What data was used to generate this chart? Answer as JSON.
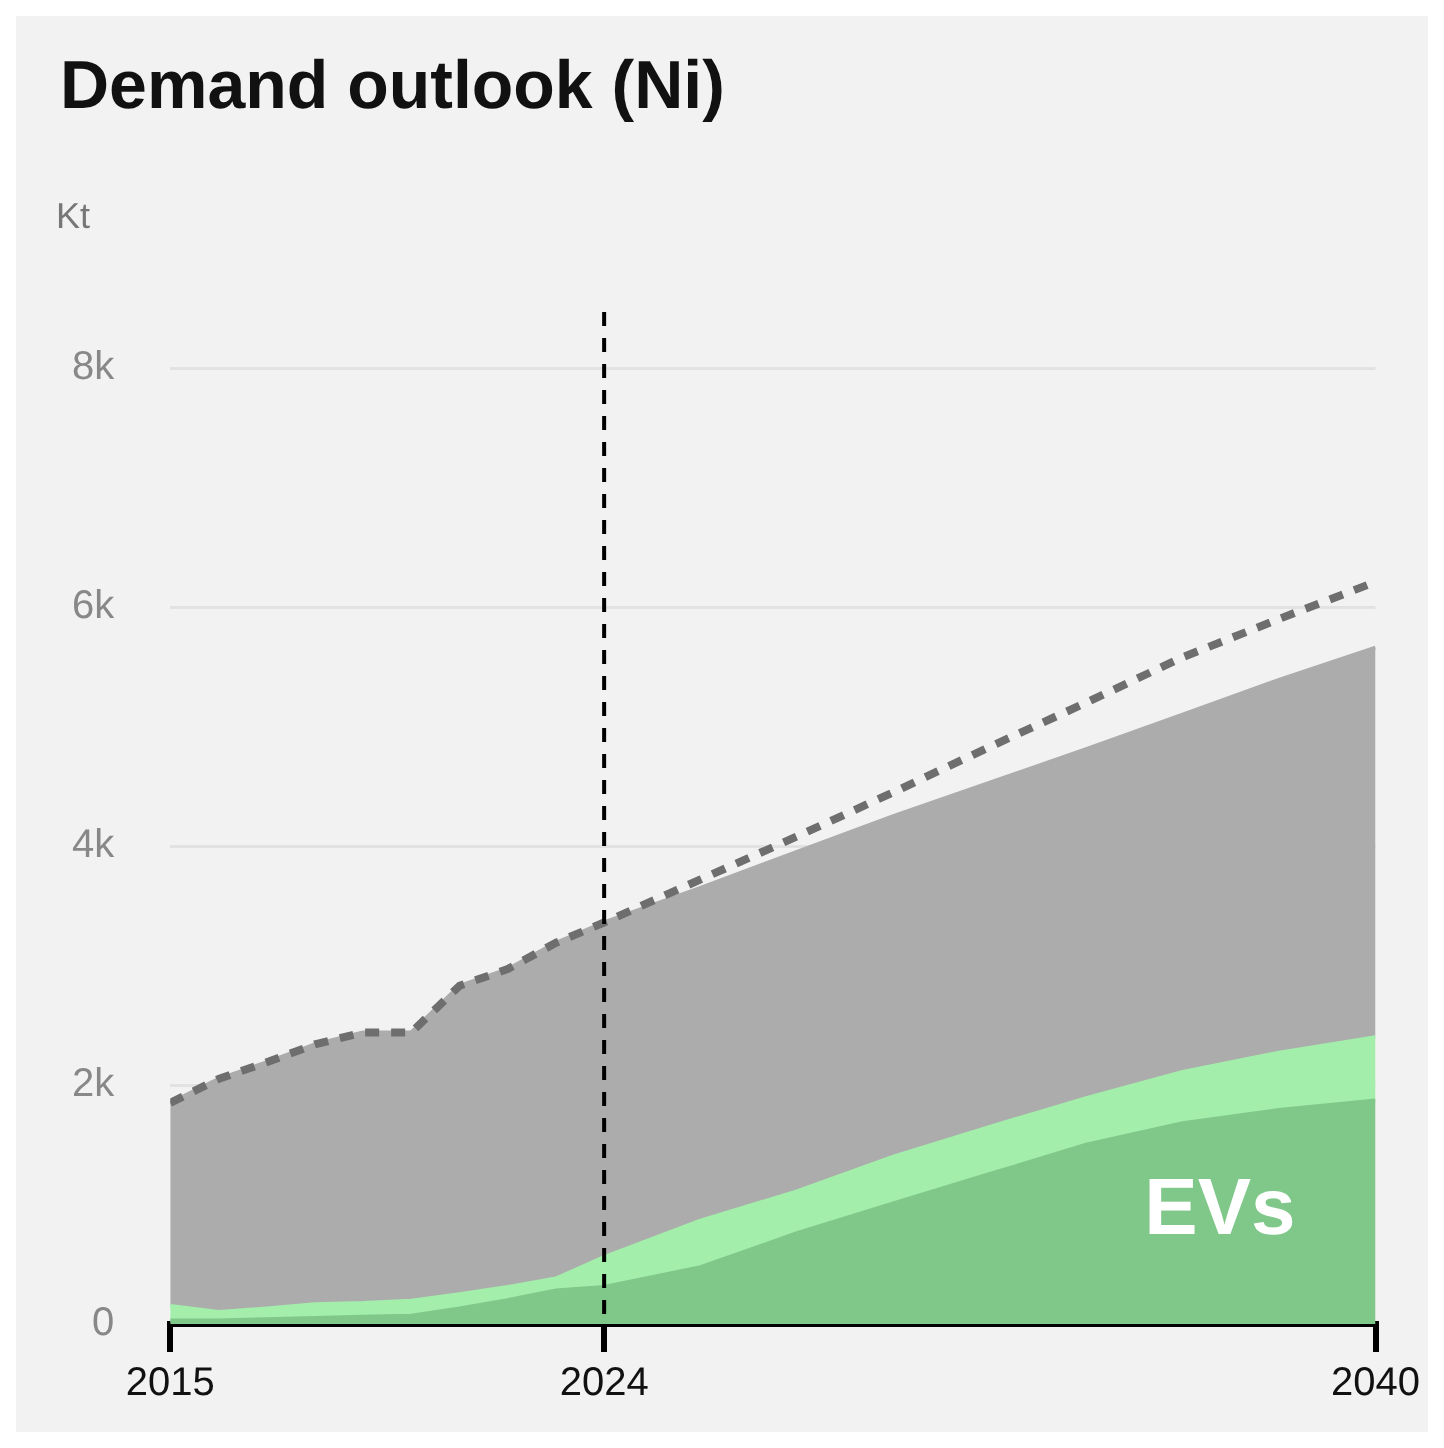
{
  "chart_data": {
    "type": "area",
    "title": "Demand outlook (Ni)",
    "ylabel": "Kt",
    "stacked": true,
    "grid": "y",
    "marker": "none",
    "x": [
      2015,
      2016,
      2017,
      2018,
      2019,
      2020,
      2021,
      2022,
      2023,
      2024,
      2026,
      2028,
      2030,
      2032,
      2034,
      2036,
      2038,
      2040
    ],
    "series": [
      {
        "name": "EVs",
        "color": "#80c78a",
        "values": [
          30,
          30,
          40,
          50,
          60,
          70,
          130,
          200,
          280,
          310,
          475,
          760,
          1010,
          1255,
          1500,
          1680,
          1790,
          1870
        ]
      },
      {
        "color": "#a3eeaa",
        "values": [
          120,
          70,
          90,
          115,
          115,
          125,
          120,
          110,
          100,
          250,
          390,
          350,
          390,
          395,
          390,
          430,
          480,
          530
        ]
      },
      {
        "color": "#acacac",
        "values": [
          1700,
          1950,
          2060,
          2175,
          2265,
          2245,
          2580,
          2660,
          2810,
          2800,
          2785,
          2840,
          2850,
          2880,
          2920,
          2990,
          3120,
          3260
        ]
      },
      {
        "type": "line",
        "line_style": "dashed",
        "color": "#6e6e6e",
        "values": [
          1850,
          2050,
          2190,
          2340,
          2440,
          2440,
          2830,
          2970,
          3190,
          3360,
          3720,
          4080,
          4450,
          4830,
          5200,
          5580,
          5900,
          6210
        ]
      }
    ],
    "xlim": [
      2015,
      2040
    ],
    "xticks": [
      2015,
      2024,
      2040
    ],
    "ylim": [
      0,
      8000
    ],
    "yticks": [
      {
        "value": 0,
        "label": "0"
      },
      {
        "value": 2000,
        "label": "2k"
      },
      {
        "value": 4000,
        "label": "4k"
      },
      {
        "value": 6000,
        "label": "6k"
      },
      {
        "value": 8000,
        "label": "8k"
      }
    ],
    "ref_lines": [
      {
        "axis": "x",
        "value": 2024,
        "color": "#000000",
        "line_style": "dashed"
      }
    ]
  }
}
